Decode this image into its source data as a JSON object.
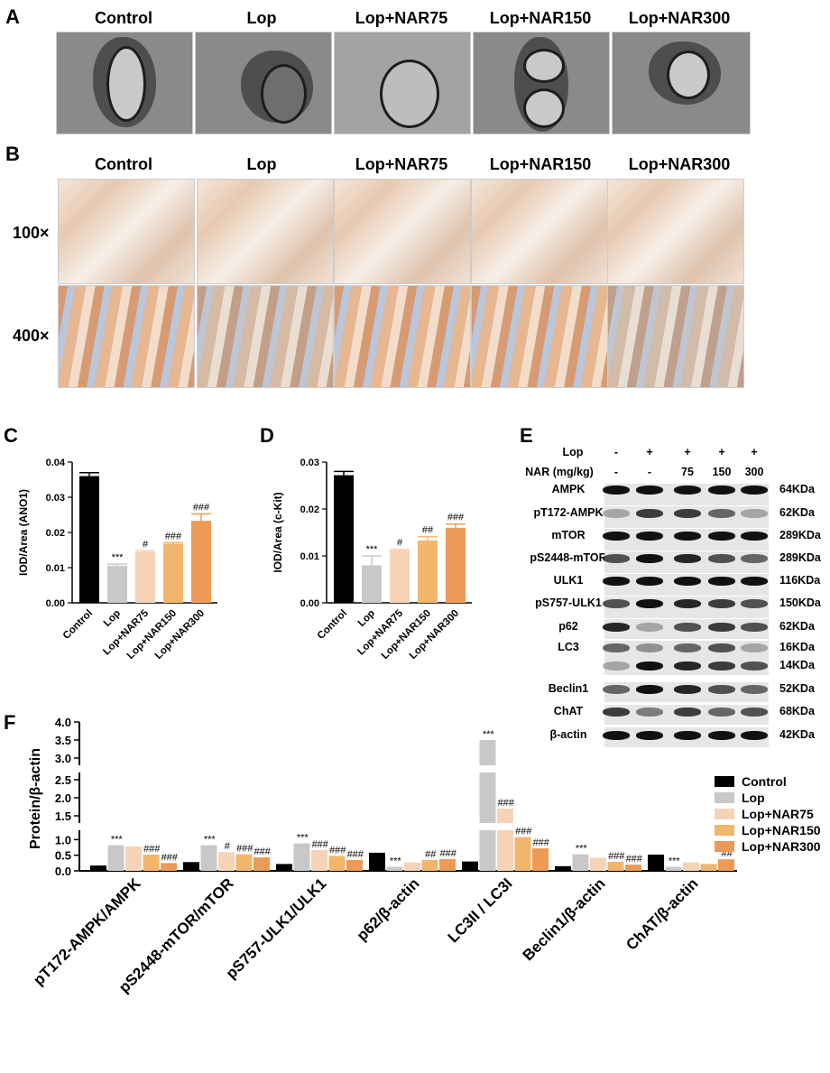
{
  "panel_labels": {
    "a": "A",
    "b": "B",
    "c": "C",
    "d": "D",
    "e": "E",
    "f": "F"
  },
  "groups": [
    "Control",
    "Lop",
    "Lop+NAR75",
    "Lop+NAR150",
    "Lop+NAR300"
  ],
  "group_colors": [
    "#000000",
    "#c8c8c8",
    "#f6d3b6",
    "#f1b66c",
    "#ec9a55"
  ],
  "magnifications": [
    "100×",
    "400×"
  ],
  "western_blot": {
    "lop_label": "Lop",
    "nar_label": "NAR (mg/kg)",
    "lop_values": [
      "-",
      "+",
      "+",
      "+",
      "+"
    ],
    "nar_values": [
      "-",
      "-",
      "75",
      "150",
      "300"
    ],
    "rows": [
      {
        "name": "AMPK",
        "kda": "64KDa"
      },
      {
        "name": "pT172-AMPK",
        "kda": "62KDa"
      },
      {
        "name": "mTOR",
        "kda": "289KDa"
      },
      {
        "name": "pS2448-mTOR",
        "kda": "289KDa"
      },
      {
        "name": "ULK1",
        "kda": "116KDa"
      },
      {
        "name": "pS757-ULK1",
        "kda": "150KDa"
      },
      {
        "name": "p62",
        "kda": "62KDa"
      },
      {
        "name": "LC3",
        "kda": "16KDa"
      },
      {
        "name": "",
        "kda": "14KDa"
      },
      {
        "name": "Beclin1",
        "kda": "52KDa"
      },
      {
        "name": "ChAT",
        "kda": "68KDa"
      },
      {
        "name": "β-actin",
        "kda": "42KDa"
      }
    ]
  },
  "chart_data": [
    {
      "id": "C",
      "type": "bar",
      "ylabel": "IOD/Area (ANO1)",
      "ylim": [
        0,
        0.04
      ],
      "yticks": [
        "0.00",
        "0.01",
        "0.02",
        "0.03",
        "0.04"
      ],
      "categories": [
        "Control",
        "Lop",
        "Lop+NAR75",
        "Lop+NAR150",
        "Lop+NAR300"
      ],
      "values": [
        0.036,
        0.0105,
        0.0145,
        0.0168,
        0.0233
      ],
      "errors": [
        0.001,
        0.0005,
        0.0003,
        0.0003,
        0.002
      ],
      "annotations": [
        "",
        "***",
        "#",
        "###",
        "###"
      ]
    },
    {
      "id": "D",
      "type": "bar",
      "ylabel": "IOD/Area (c-Kit)",
      "ylim": [
        0,
        0.03
      ],
      "yticks": [
        "0.00",
        "0.01",
        "0.02",
        "0.03"
      ],
      "categories": [
        "Control",
        "Lop",
        "Lop+NAR75",
        "Lop+NAR150",
        "Lop+NAR300"
      ],
      "values": [
        0.0272,
        0.008,
        0.0112,
        0.0133,
        0.016
      ],
      "errors": [
        0.0008,
        0.002,
        0.0002,
        0.0008,
        0.0008
      ],
      "annotations": [
        "",
        "***",
        "#",
        "##",
        "###"
      ]
    },
    {
      "id": "F",
      "type": "bar",
      "ylabel": "Protein/β-actin",
      "broken_axis": true,
      "yticks": [
        "0.0",
        "0.5",
        "1.0",
        "1.5",
        "2.0",
        "2.5",
        "3.0",
        "3.5",
        "4.0"
      ],
      "categories": [
        "pT172-AMPK/AMPK",
        "pS2448-mTOR/mTOR",
        "pS757-ULK1/ULK1",
        "p62/β-actin",
        "LC3II / LC3I",
        "Beclin1/β-actin",
        "ChAT/β-actin"
      ],
      "series": [
        {
          "name": "Control",
          "values": [
            0.17,
            0.28,
            0.22,
            0.58,
            0.3,
            0.15,
            0.52
          ]
        },
        {
          "name": "Lop",
          "values": [
            0.82,
            0.82,
            0.88,
            0.13,
            3.5,
            0.53,
            0.13
          ]
        },
        {
          "name": "Lop+NAR75",
          "values": [
            0.78,
            0.6,
            0.67,
            0.27,
            1.7,
            0.42,
            0.27
          ]
        },
        {
          "name": "Lop+NAR150",
          "values": [
            0.52,
            0.53,
            0.48,
            0.35,
            1.08,
            0.29,
            0.22
          ]
        },
        {
          "name": "Lop+NAR300",
          "values": [
            0.25,
            0.43,
            0.35,
            0.38,
            0.72,
            0.2,
            0.37
          ]
        }
      ],
      "annotations": [
        [
          "",
          "***",
          "",
          "###",
          "###"
        ],
        [
          "",
          "***",
          "#",
          "###",
          "###"
        ],
        [
          "",
          "***",
          "###",
          "###",
          "###"
        ],
        [
          "",
          "***",
          "",
          "##",
          "###"
        ],
        [
          "",
          "***",
          "###",
          "###",
          "###"
        ],
        [
          "",
          "***",
          "",
          "###",
          "###"
        ],
        [
          "",
          "***",
          "",
          "",
          "##"
        ]
      ],
      "legend_position": "right"
    }
  ]
}
